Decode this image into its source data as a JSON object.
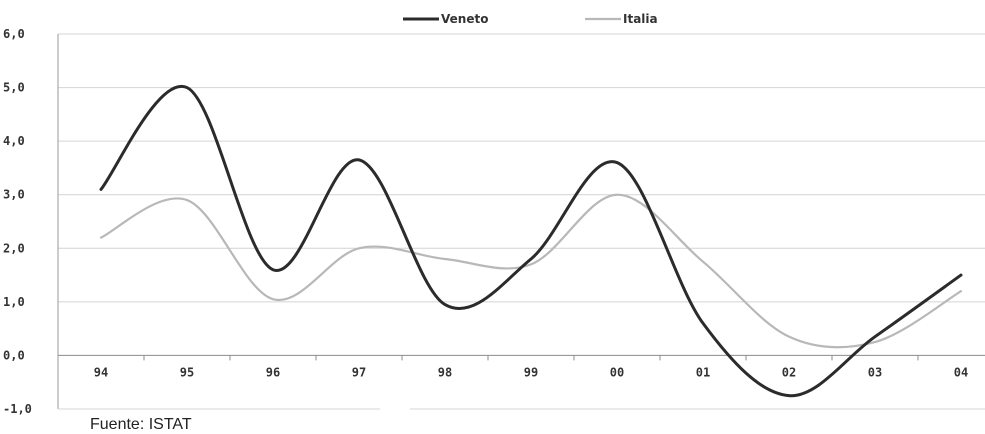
{
  "chart_data": {
    "type": "line",
    "categories": [
      "94",
      "95",
      "96",
      "97",
      "98",
      "99",
      "00",
      "01",
      "02",
      "03",
      "04"
    ],
    "series": [
      {
        "name": "Veneto",
        "color": "#2b2b2b",
        "values": [
          3.1,
          5.0,
          1.6,
          3.65,
          0.95,
          1.8,
          3.6,
          0.6,
          -0.75,
          0.35,
          1.5
        ]
      },
      {
        "name": "Italia",
        "color": "#b8b8b8",
        "values": [
          2.2,
          2.9,
          1.05,
          2.0,
          1.8,
          1.7,
          3.0,
          1.75,
          0.35,
          0.25,
          1.2
        ]
      }
    ],
    "ylim": [
      -1.0,
      6.0
    ],
    "yticks": [
      "6,0",
      "5,0",
      "4,0",
      "3,0",
      "2,0",
      "1,0",
      "0,0",
      "-1,0"
    ],
    "grid": true,
    "legend_position": "top-center"
  },
  "source_note": "Fuente: ISTAT"
}
